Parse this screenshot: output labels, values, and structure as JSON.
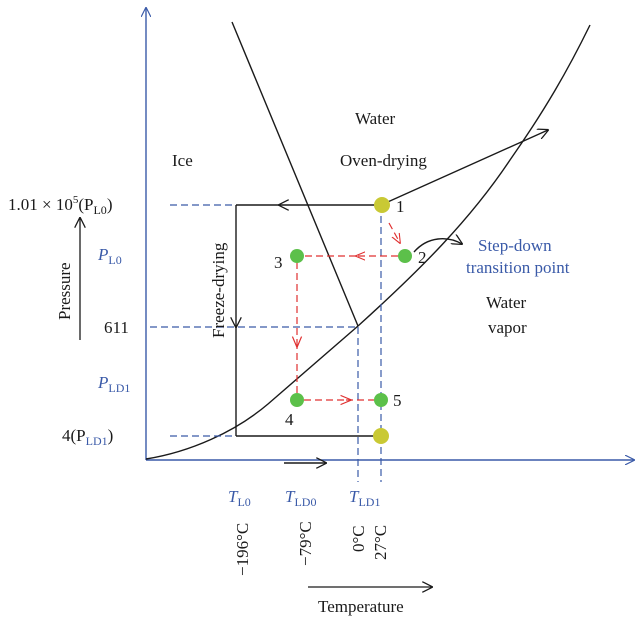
{
  "colors": {
    "axis": "#3a5aa8",
    "curve": "#1a1a1a",
    "dash_blue": "#3a5aa8",
    "dash_red": "#e03030",
    "point_yellow": "#c9c934",
    "point_green": "#5cc04a"
  },
  "regions": {
    "water": "Water",
    "ice": "Ice",
    "water_vapor_line1": "Water",
    "water_vapor_line2": "vapor"
  },
  "processes": {
    "oven_drying": "Oven-drying",
    "freeze_drying": "Freeze-drying"
  },
  "step_down": {
    "line1": "Step-down",
    "line2": "transition point"
  },
  "points": {
    "p1": "1",
    "p2": "2",
    "p3": "3",
    "p4": "4",
    "p5": "5"
  },
  "y_axis": {
    "label": "Pressure",
    "ticks": {
      "atm_main": "1.01 × 10",
      "atm_exp": "5",
      "atm_open": "(P",
      "atm_sub": "L0",
      "atm_close": ")",
      "pl0_main": "P",
      "pl0_sub": "L0",
      "t611": "611",
      "pld1_main": "P",
      "pld1_sub": "LD1",
      "four_main": "4(P",
      "four_sub": "LD1",
      "four_close": ")"
    }
  },
  "x_axis": {
    "label": "Temperature",
    "ticks": {
      "tl0_main": "T",
      "tl0_sub": "L0",
      "tld0_main": "T",
      "tld0_sub": "LD0",
      "tld1_main": "T",
      "tld1_sub": "LD1",
      "c196": "−196°C",
      "c79": "−79°C",
      "c0": "0°C",
      "c27": "27°C"
    }
  }
}
